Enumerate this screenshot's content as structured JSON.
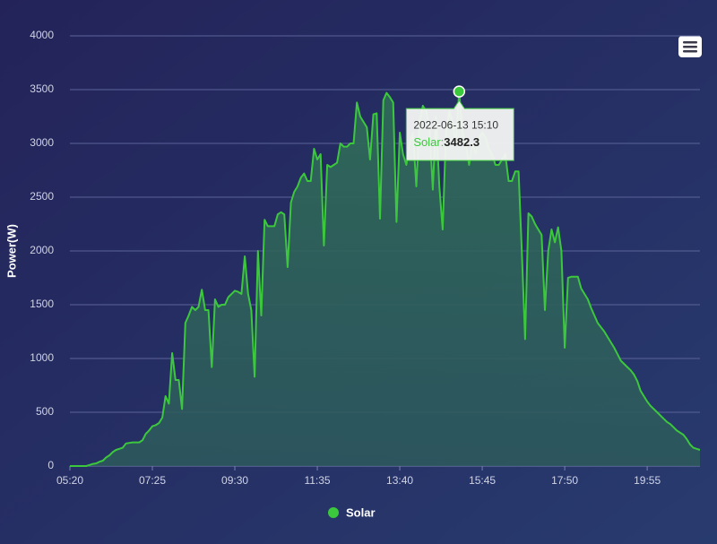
{
  "chart_data": {
    "type": "area",
    "y_label": "Power(W)",
    "categories": [
      "05:20",
      null,
      null,
      null,
      null,
      null,
      null,
      null,
      null,
      null,
      null,
      null,
      null,
      null,
      null,
      null,
      null,
      null,
      null,
      null,
      null,
      null,
      null,
      null,
      null,
      "07:25",
      null,
      null,
      null,
      null,
      null,
      null,
      null,
      null,
      null,
      null,
      null,
      null,
      null,
      null,
      null,
      null,
      null,
      null,
      null,
      null,
      null,
      null,
      null,
      null,
      "09:30",
      null,
      null,
      null,
      null,
      null,
      null,
      null,
      null,
      null,
      null,
      null,
      null,
      null,
      null,
      null,
      null,
      null,
      null,
      null,
      null,
      null,
      null,
      null,
      null,
      "11:35",
      null,
      null,
      null,
      null,
      null,
      null,
      null,
      null,
      null,
      null,
      null,
      null,
      null,
      null,
      null,
      null,
      null,
      null,
      null,
      null,
      null,
      null,
      null,
      null,
      "13:40",
      null,
      null,
      null,
      null,
      null,
      null,
      null,
      null,
      null,
      null,
      null,
      null,
      null,
      null,
      null,
      null,
      null,
      null,
      null,
      null,
      null,
      null,
      null,
      null,
      "15:45",
      null,
      null,
      null,
      null,
      null,
      null,
      null,
      null,
      null,
      null,
      null,
      null,
      null,
      null,
      null,
      null,
      null,
      null,
      null,
      null,
      null,
      null,
      null,
      null,
      "17:50",
      null,
      null,
      null,
      null,
      null,
      null,
      null,
      null,
      null,
      null,
      null,
      null,
      null,
      null,
      null,
      null,
      null,
      null,
      null,
      null,
      null,
      null,
      null,
      null,
      "19:55",
      null,
      null,
      null,
      null,
      null,
      null,
      null,
      null,
      null,
      null,
      null,
      null,
      null,
      null,
      null,
      null
    ],
    "series": [
      {
        "name": "Solar",
        "color": "#3cc83c",
        "values": [
          0,
          0,
          0,
          0,
          0,
          0,
          10,
          20,
          25,
          40,
          50,
          80,
          100,
          130,
          150,
          160,
          170,
          210,
          215,
          220,
          220,
          220,
          240,
          300,
          330,
          370,
          380,
          400,
          450,
          650,
          580,
          1050,
          800,
          800,
          530,
          1330,
          1400,
          1480,
          1450,
          1480,
          1640,
          1450,
          1450,
          920,
          1550,
          1480,
          1500,
          1500,
          1570,
          1600,
          1630,
          1620,
          1600,
          1950,
          1600,
          1450,
          830,
          2000,
          1400,
          2290,
          2230,
          2230,
          2230,
          2340,
          2360,
          2340,
          1850,
          2450,
          2550,
          2600,
          2680,
          2720,
          2650,
          2650,
          2950,
          2850,
          2900,
          2050,
          2800,
          2780,
          2800,
          2820,
          3000,
          2970,
          2970,
          3000,
          3000,
          3380,
          3250,
          3200,
          3150,
          2850,
          3270,
          3280,
          2300,
          3400,
          3470,
          3430,
          3380,
          2270,
          3100,
          2900,
          2800,
          3000,
          3100,
          2600,
          3200,
          3350,
          3300,
          3150,
          2570,
          3250,
          2600,
          2200,
          3100,
          3300,
          3200,
          3000,
          3482.3,
          3100,
          3000,
          2800,
          3000,
          2900,
          3050,
          3100,
          3050,
          2950,
          2900,
          2800,
          2800,
          2850,
          2900,
          2650,
          2650,
          2740,
          2740,
          2000,
          1180,
          2350,
          2320,
          2250,
          2200,
          2150,
          1450,
          2000,
          2200,
          2080,
          2220,
          2000,
          1100,
          1750,
          1760,
          1760,
          1760,
          1650,
          1600,
          1550,
          1470,
          1400,
          1330,
          1290,
          1250,
          1200,
          1150,
          1100,
          1040,
          980,
          950,
          920,
          890,
          850,
          790,
          700,
          650,
          600,
          560,
          530,
          500,
          470,
          440,
          410,
          390,
          360,
          330,
          310,
          290,
          250,
          200,
          170,
          160,
          150
        ]
      }
    ],
    "ylim": [
      0,
      4000
    ],
    "yticks": [
      0,
      500,
      1000,
      1500,
      2000,
      2500,
      3000,
      3500,
      4000
    ],
    "grid": true,
    "tooltip": {
      "title": "2022-06-13 15:10",
      "label": "Solar:"
    }
  }
}
